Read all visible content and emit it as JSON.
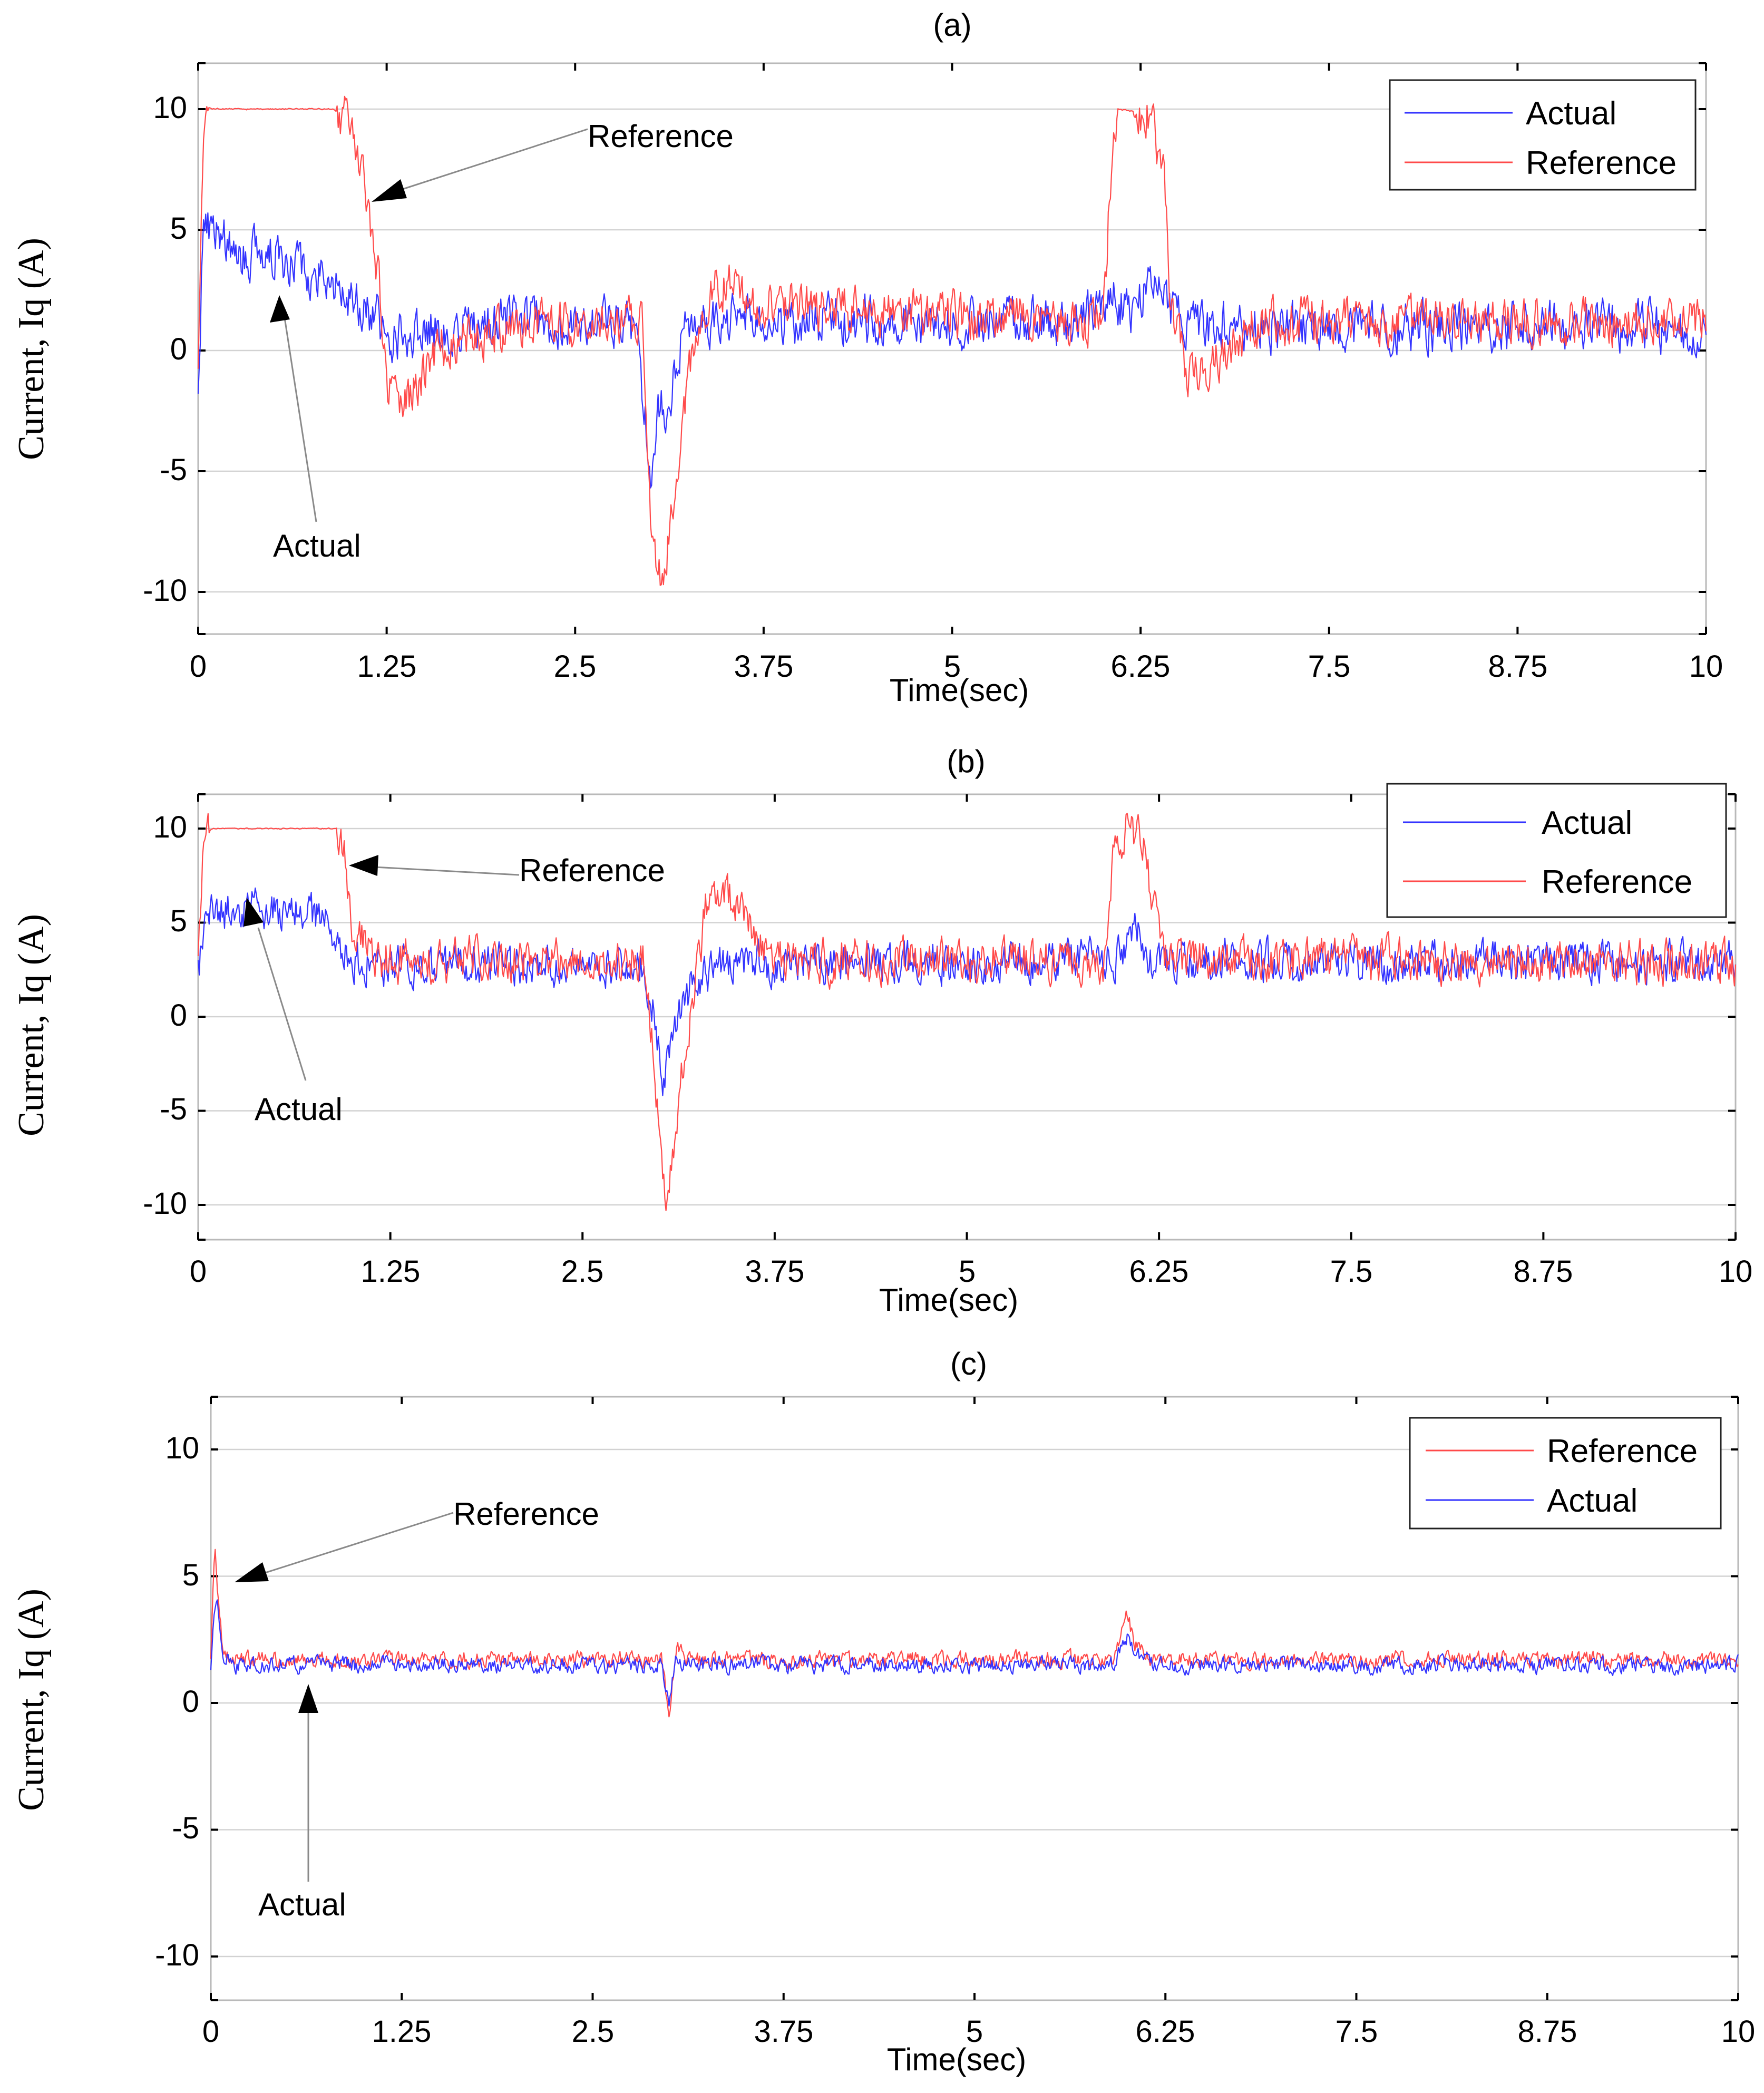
{
  "colors": {
    "actual": "#3333ff",
    "reference": "#ff4a4a"
  },
  "chart_data": [
    {
      "type": "line",
      "title": "(a)",
      "xlabel": "Time(sec)",
      "ylabel": "Current, Iq (A)",
      "xlim": [
        0,
        10
      ],
      "ylim": [
        -12,
        12
      ],
      "xticks": [
        "0",
        "1.25",
        "2.5",
        "3.75",
        "5",
        "6.25",
        "7.5",
        "8.75",
        "10"
      ],
      "yticks": [
        "10",
        "5",
        "0",
        "-5",
        "-10"
      ],
      "grid": true,
      "legend": "top-right",
      "legend_order": [
        "Actual",
        "Reference"
      ],
      "series": [
        {
          "name": "Actual",
          "color": "#3333ff",
          "x": [
            0,
            0.03,
            0.1,
            0.2,
            0.35,
            0.5,
            0.7,
            0.85,
            1.0,
            1.15,
            1.3,
            1.5,
            2.5,
            2.9,
            3.0,
            3.05,
            3.1,
            3.2,
            3.3,
            3.5,
            5.5,
            6.0,
            6.05,
            6.2,
            6.3,
            6.45,
            6.6,
            10
          ],
          "y": [
            -1.3,
            4.5,
            5.6,
            4.2,
            3.9,
            4.0,
            3.5,
            3.2,
            2.2,
            1.5,
            0.5,
            1.0,
            1.2,
            1.0,
            -5.0,
            -2.0,
            -3.0,
            0.5,
            1.0,
            1.2,
            1.2,
            1.5,
            2.5,
            1.5,
            3.0,
            1.5,
            1.0,
            1.0
          ],
          "noise": 1.6
        },
        {
          "name": "Reference",
          "color": "#ff4a4a",
          "x": [
            0,
            0.04,
            0.08,
            0.9,
            1.0,
            1.1,
            1.2,
            1.25,
            1.35,
            1.6,
            2.5,
            2.95,
            3.0,
            3.05,
            3.1,
            3.2,
            3.3,
            3.45,
            3.7,
            5.5,
            6.0,
            6.05,
            6.1,
            6.3,
            6.4,
            6.45,
            6.55,
            6.8,
            7.0,
            10
          ],
          "y": [
            -1.2,
            9.5,
            10,
            10,
            9.5,
            7.0,
            3.0,
            -1.5,
            -2.5,
            0.3,
            1.2,
            1.0,
            -7.0,
            -9.6,
            -8.5,
            -4.0,
            1.0,
            2.8,
            2.0,
            1.2,
            1.2,
            7.0,
            10,
            9.8,
            7.5,
            2.0,
            -1.0,
            -0.3,
            1.2,
            1.2
          ],
          "noise": 1.5
        }
      ],
      "annotations": [
        {
          "text": "Reference"
        },
        {
          "text": "Actual"
        }
      ]
    },
    {
      "type": "line",
      "title": "(b)",
      "xlabel": "Time(sec)",
      "ylabel": "Current, Iq (A)",
      "xlim": [
        0,
        10
      ],
      "ylim": [
        -12,
        12
      ],
      "xticks": [
        "0",
        "1.25",
        "2.5",
        "3.75",
        "5",
        "6.25",
        "7.5",
        "8.75",
        "10"
      ],
      "yticks": [
        "10",
        "5",
        "0",
        "-5",
        "-10"
      ],
      "grid": true,
      "legend": "top-right",
      "legend_order": [
        "Actual",
        "Reference"
      ],
      "series": [
        {
          "name": "Actual",
          "color": "#3333ff",
          "x": [
            0,
            0.05,
            0.3,
            0.8,
            0.9,
            1.0,
            1.2,
            2.9,
            2.97,
            3.02,
            3.1,
            3.2,
            3.4,
            5.0,
            6.0,
            6.1,
            6.2,
            10
          ],
          "y": [
            2.5,
            5.3,
            5.8,
            5.3,
            3.8,
            3.0,
            2.8,
            2.8,
            0.0,
            -3.5,
            -1.0,
            1.5,
            2.8,
            2.8,
            3.0,
            5.0,
            3.0,
            2.9
          ],
          "noise": 1.7
        },
        {
          "name": "Reference",
          "color": "#ff4a4a",
          "x": [
            0,
            0.04,
            0.08,
            0.9,
            0.95,
            1.0,
            1.2,
            2.9,
            2.97,
            3.02,
            3.06,
            3.15,
            3.3,
            3.45,
            3.7,
            5.0,
            5.9,
            5.95,
            6.05,
            6.15,
            6.2,
            6.3,
            10
          ],
          "y": [
            3.0,
            9.5,
            10,
            10,
            9.0,
            5.0,
            3.0,
            3.0,
            -3.0,
            -9.0,
            -9.5,
            -3.0,
            5.5,
            6.5,
            3.0,
            3.0,
            3.0,
            8.0,
            10,
            9.5,
            6.0,
            3.0,
            2.9
          ],
          "noise": 1.8
        }
      ],
      "annotations": [
        {
          "text": "Reference"
        },
        {
          "text": "Actual"
        }
      ]
    },
    {
      "type": "line",
      "title": "(c)",
      "xlabel": "Time(sec)",
      "ylabel": "Current, Iq (A)",
      "xlim": [
        0,
        10
      ],
      "ylim": [
        -12,
        12
      ],
      "xticks": [
        "0",
        "1.25",
        "2.5",
        "3.75",
        "5",
        "6.25",
        "7.5",
        "8.75",
        "10"
      ],
      "yticks": [
        "10",
        "5",
        "0",
        "-5",
        "-10"
      ],
      "grid": true,
      "legend": "top-right",
      "legend_order": [
        "Reference",
        "Actual"
      ],
      "series": [
        {
          "name": "Reference",
          "color": "#ff4a4a",
          "x": [
            0,
            0.02,
            0.03,
            0.05,
            0.08,
            0.15,
            2.95,
            3.0,
            3.05,
            3.1,
            5.9,
            6.0,
            6.05,
            6.15,
            10
          ],
          "y": [
            1.5,
            5.5,
            6.0,
            4.0,
            2.0,
            1.7,
            1.7,
            -0.5,
            2.4,
            1.7,
            1.7,
            3.5,
            2.3,
            1.7,
            1.7
          ],
          "noise": 0.5
        },
        {
          "name": "Actual",
          "color": "#3333ff",
          "x": [
            0,
            0.02,
            0.04,
            0.08,
            0.15,
            2.95,
            3.0,
            3.05,
            3.1,
            5.9,
            6.0,
            6.05,
            6.15,
            10
          ],
          "y": [
            1.3,
            3.5,
            4.0,
            2.0,
            1.5,
            1.5,
            0.0,
            1.8,
            1.5,
            1.5,
            2.6,
            2.0,
            1.5,
            1.5
          ],
          "noise": 0.5
        }
      ],
      "annotations": [
        {
          "text": "Reference"
        },
        {
          "text": "Actual"
        }
      ]
    }
  ]
}
